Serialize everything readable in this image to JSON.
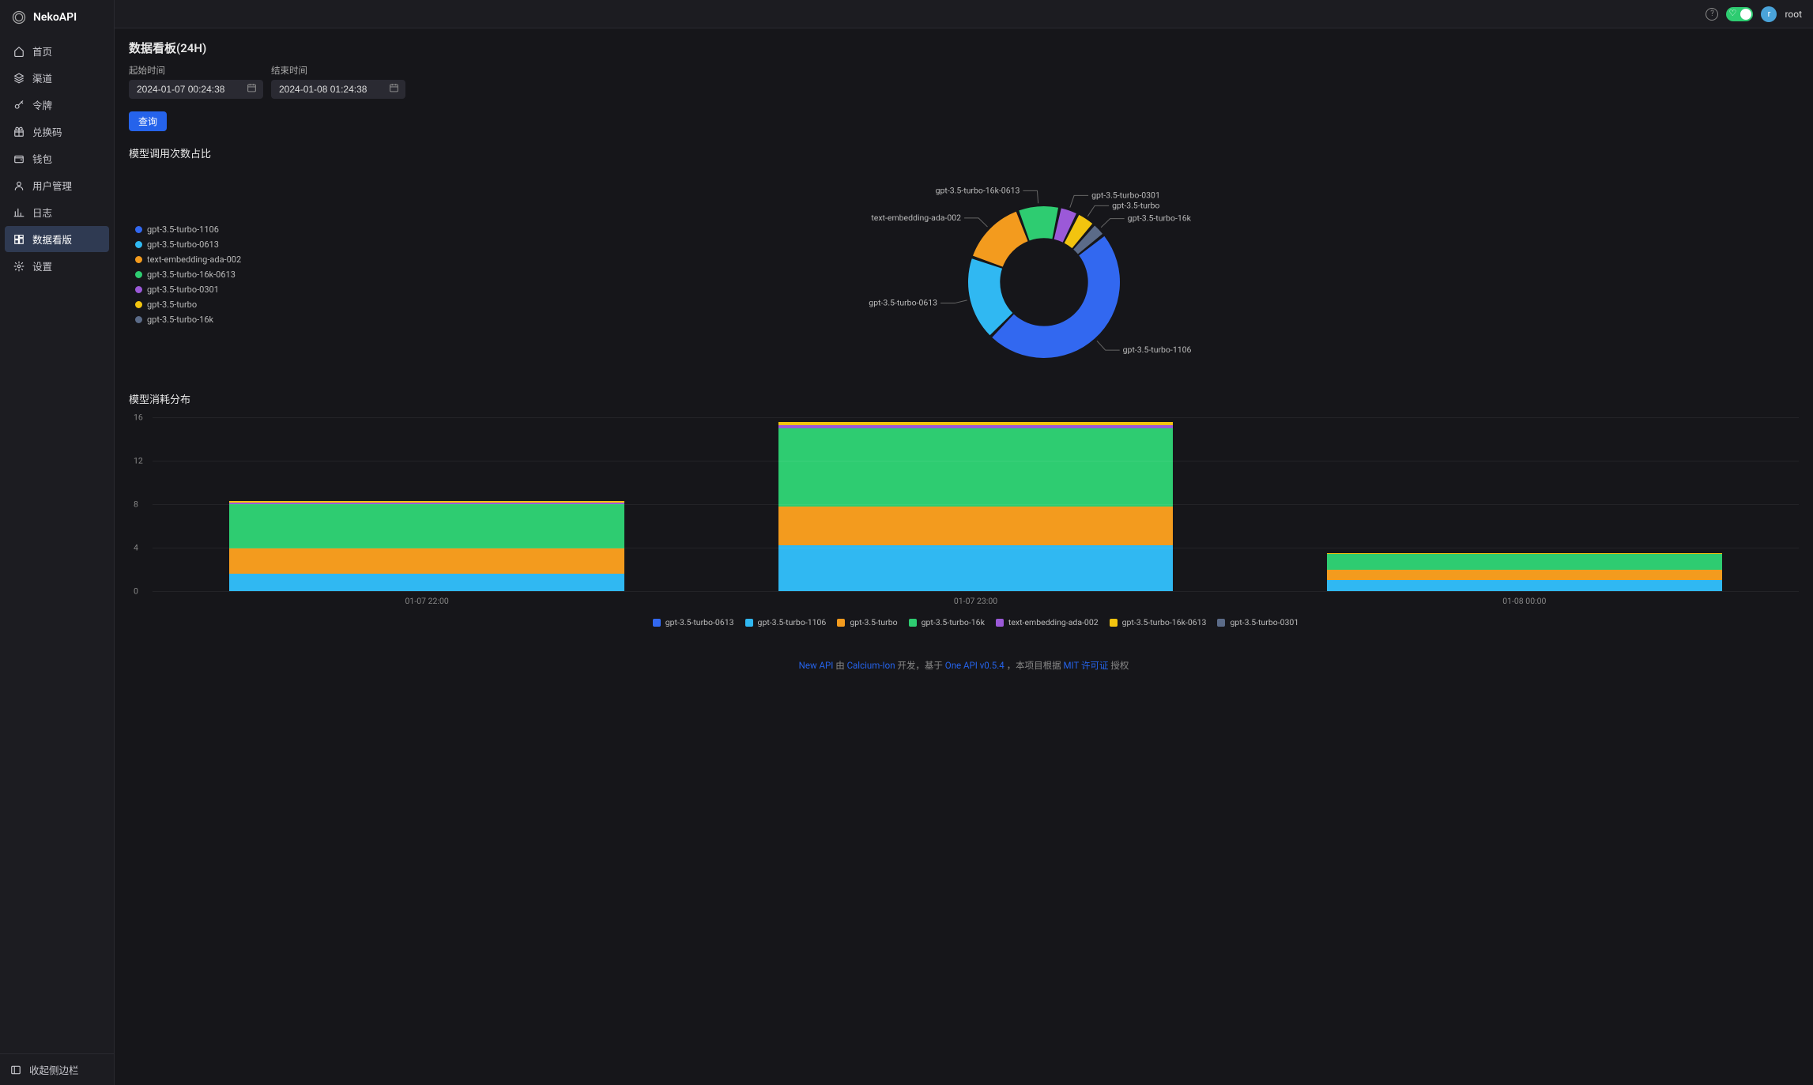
{
  "brand": {
    "name": "NekoAPI"
  },
  "sidebar": {
    "items": [
      {
        "label": "首页",
        "icon": "home"
      },
      {
        "label": "渠道",
        "icon": "layers"
      },
      {
        "label": "令牌",
        "icon": "key"
      },
      {
        "label": "兑换码",
        "icon": "gift"
      },
      {
        "label": "钱包",
        "icon": "wallet"
      },
      {
        "label": "用户管理",
        "icon": "user"
      },
      {
        "label": "日志",
        "icon": "chart"
      },
      {
        "label": "数据看版",
        "icon": "dashboard",
        "active": true
      },
      {
        "label": "设置",
        "icon": "gear"
      }
    ],
    "collapse_label": "收起侧边栏"
  },
  "topbar": {
    "username": "root",
    "avatar_letter": "r"
  },
  "page": {
    "title": "数据看板(24H)",
    "start_label": "起始时间",
    "end_label": "结束时间",
    "start_value": "2024-01-07 00:24:38",
    "end_value": "2024-01-08 01:24:38",
    "query_label": "查询"
  },
  "donut": {
    "title": "模型调用次数占比",
    "background": "#16161a",
    "inner_radius_pct": 58,
    "slices": [
      {
        "label": "gpt-3.5-turbo-1106",
        "value": 48,
        "color": "#3268f0"
      },
      {
        "label": "gpt-3.5-turbo-0613",
        "value": 18,
        "color": "#30b8f2"
      },
      {
        "label": "text-embedding-ada-002",
        "value": 14,
        "color": "#f39b1e"
      },
      {
        "label": "gpt-3.5-turbo-16k-0613",
        "value": 9,
        "color": "#2ecc71"
      },
      {
        "label": "gpt-3.5-turbo-0301",
        "value": 4,
        "color": "#9b59d8"
      },
      {
        "label": "gpt-3.5-turbo",
        "value": 4,
        "color": "#f2c40f"
      },
      {
        "label": "gpt-3.5-turbo-16k",
        "value": 3,
        "color": "#5b6b88"
      }
    ],
    "label_colors": {
      "gpt-3.5-turbo-1106": "#3268f0",
      "gpt-3.5-turbo-0613": "#30b8f2",
      "text-embedding-ada-002": "#f39b1e",
      "gpt-3.5-turbo-16k-0613": "#2ecc71",
      "gpt-3.5-turbo-0301": "#9b59d8",
      "gpt-3.5-turbo": "#f2c40f",
      "gpt-3.5-turbo-16k": "#5b6b88"
    }
  },
  "bars": {
    "title": "模型消耗分布",
    "y_max": 16,
    "y_ticks": [
      0,
      4,
      8,
      12,
      16
    ],
    "grid_color": "rgba(255,255,255,0.06)",
    "categories": [
      "01-07 22:00",
      "01-07 23:00",
      "01-08 00:00"
    ],
    "series": [
      {
        "label": "gpt-3.5-turbo-0613",
        "color": "#3268f0",
        "values": [
          0.0,
          0.0,
          0.0
        ]
      },
      {
        "label": "gpt-3.5-turbo-1106",
        "color": "#30b8f2",
        "values": [
          1.6,
          4.2,
          1.0
        ]
      },
      {
        "label": "gpt-3.5-turbo",
        "color": "#f39b1e",
        "values": [
          2.3,
          3.6,
          1.0
        ]
      },
      {
        "label": "gpt-3.5-turbo-16k",
        "color": "#2ecc71",
        "values": [
          4.1,
          7.2,
          1.4
        ]
      },
      {
        "label": "text-embedding-ada-002",
        "color": "#9b59d8",
        "values": [
          0.15,
          0.25,
          0.0
        ]
      },
      {
        "label": "gpt-3.5-turbo-16k-0613",
        "color": "#f2c40f",
        "values": [
          0.15,
          0.35,
          0.1
        ]
      },
      {
        "label": "gpt-3.5-turbo-0301",
        "color": "#5b6b88",
        "values": [
          0.0,
          0.0,
          0.0
        ]
      }
    ]
  },
  "footer": {
    "p1": "New API",
    "p2": " 由 ",
    "p3": "Calcium-Ion",
    "p4": " 开发，基于 ",
    "p5": "One API v0.5.4",
    "p6": " ，本项目根据 ",
    "p7": "MIT 许可证",
    "p8": " 授权"
  }
}
